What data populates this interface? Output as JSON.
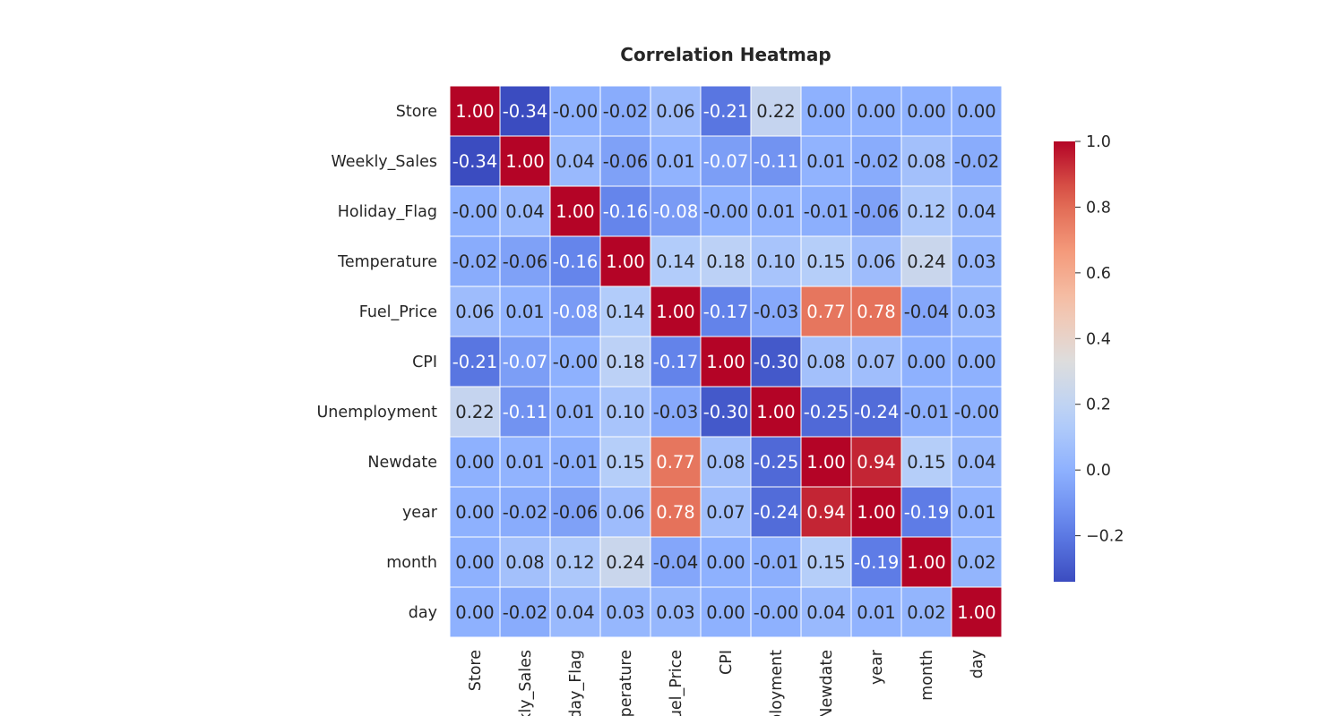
{
  "chart_data": {
    "type": "heatmap",
    "title": "Correlation Heatmap",
    "colormap": "coolwarm",
    "value_range": [
      -0.34,
      1.0
    ],
    "value_format": "2 decimals",
    "rows": [
      "Store",
      "Weekly_Sales",
      "Holiday_Flag",
      "Temperature",
      "Fuel_Price",
      "CPI",
      "Unemployment",
      "Newdate",
      "year",
      "month",
      "day"
    ],
    "columns": [
      "Store",
      "Weekly_Sales",
      "Holiday_Flag",
      "Temperature",
      "Fuel_Price",
      "CPI",
      "Unemployment",
      "Newdate",
      "year",
      "month",
      "day"
    ],
    "column_tick_labels_visible": [
      "Store",
      "kly_Sales",
      "liday_Flag",
      "nperature",
      "uel_Price",
      "CPI",
      "ployment",
      "Newdate",
      "year",
      "month",
      "day"
    ],
    "values": [
      [
        1.0,
        -0.34,
        -0.0,
        -0.02,
        0.06,
        -0.21,
        0.22,
        0.0,
        0.0,
        0.0,
        0.0
      ],
      [
        -0.34,
        1.0,
        0.04,
        -0.06,
        0.01,
        -0.07,
        -0.11,
        0.01,
        -0.02,
        0.08,
        -0.02
      ],
      [
        -0.0,
        0.04,
        1.0,
        -0.16,
        -0.08,
        -0.0,
        0.01,
        -0.01,
        -0.06,
        0.12,
        0.04
      ],
      [
        -0.02,
        -0.06,
        -0.16,
        1.0,
        0.14,
        0.18,
        0.1,
        0.15,
        0.06,
        0.24,
        0.03
      ],
      [
        0.06,
        0.01,
        -0.08,
        0.14,
        1.0,
        -0.17,
        -0.03,
        0.77,
        0.78,
        -0.04,
        0.03
      ],
      [
        -0.21,
        -0.07,
        -0.0,
        0.18,
        -0.17,
        1.0,
        -0.3,
        0.08,
        0.07,
        0.0,
        0.0
      ],
      [
        0.22,
        -0.11,
        0.01,
        0.1,
        -0.03,
        -0.3,
        1.0,
        -0.25,
        -0.24,
        -0.01,
        -0.0
      ],
      [
        0.0,
        0.01,
        -0.01,
        0.15,
        0.77,
        0.08,
        -0.25,
        1.0,
        0.94,
        0.15,
        0.04
      ],
      [
        0.0,
        -0.02,
        -0.06,
        0.06,
        0.78,
        0.07,
        -0.24,
        0.94,
        1.0,
        -0.19,
        0.01
      ],
      [
        0.0,
        0.08,
        0.12,
        0.24,
        -0.04,
        0.0,
        -0.01,
        0.15,
        -0.19,
        1.0,
        0.02
      ],
      [
        0.0,
        -0.02,
        0.04,
        0.03,
        0.03,
        0.0,
        -0.0,
        0.04,
        0.01,
        0.02,
        1.0
      ]
    ],
    "colorbar": {
      "ticks": [
        -0.2,
        0.0,
        0.2,
        0.4,
        0.6,
        0.8,
        1.0
      ],
      "tick_labels": [
        "−0.2",
        "0.0",
        "0.2",
        "0.4",
        "0.6",
        "0.8",
        "1.0"
      ]
    },
    "grid_lines": "white"
  }
}
